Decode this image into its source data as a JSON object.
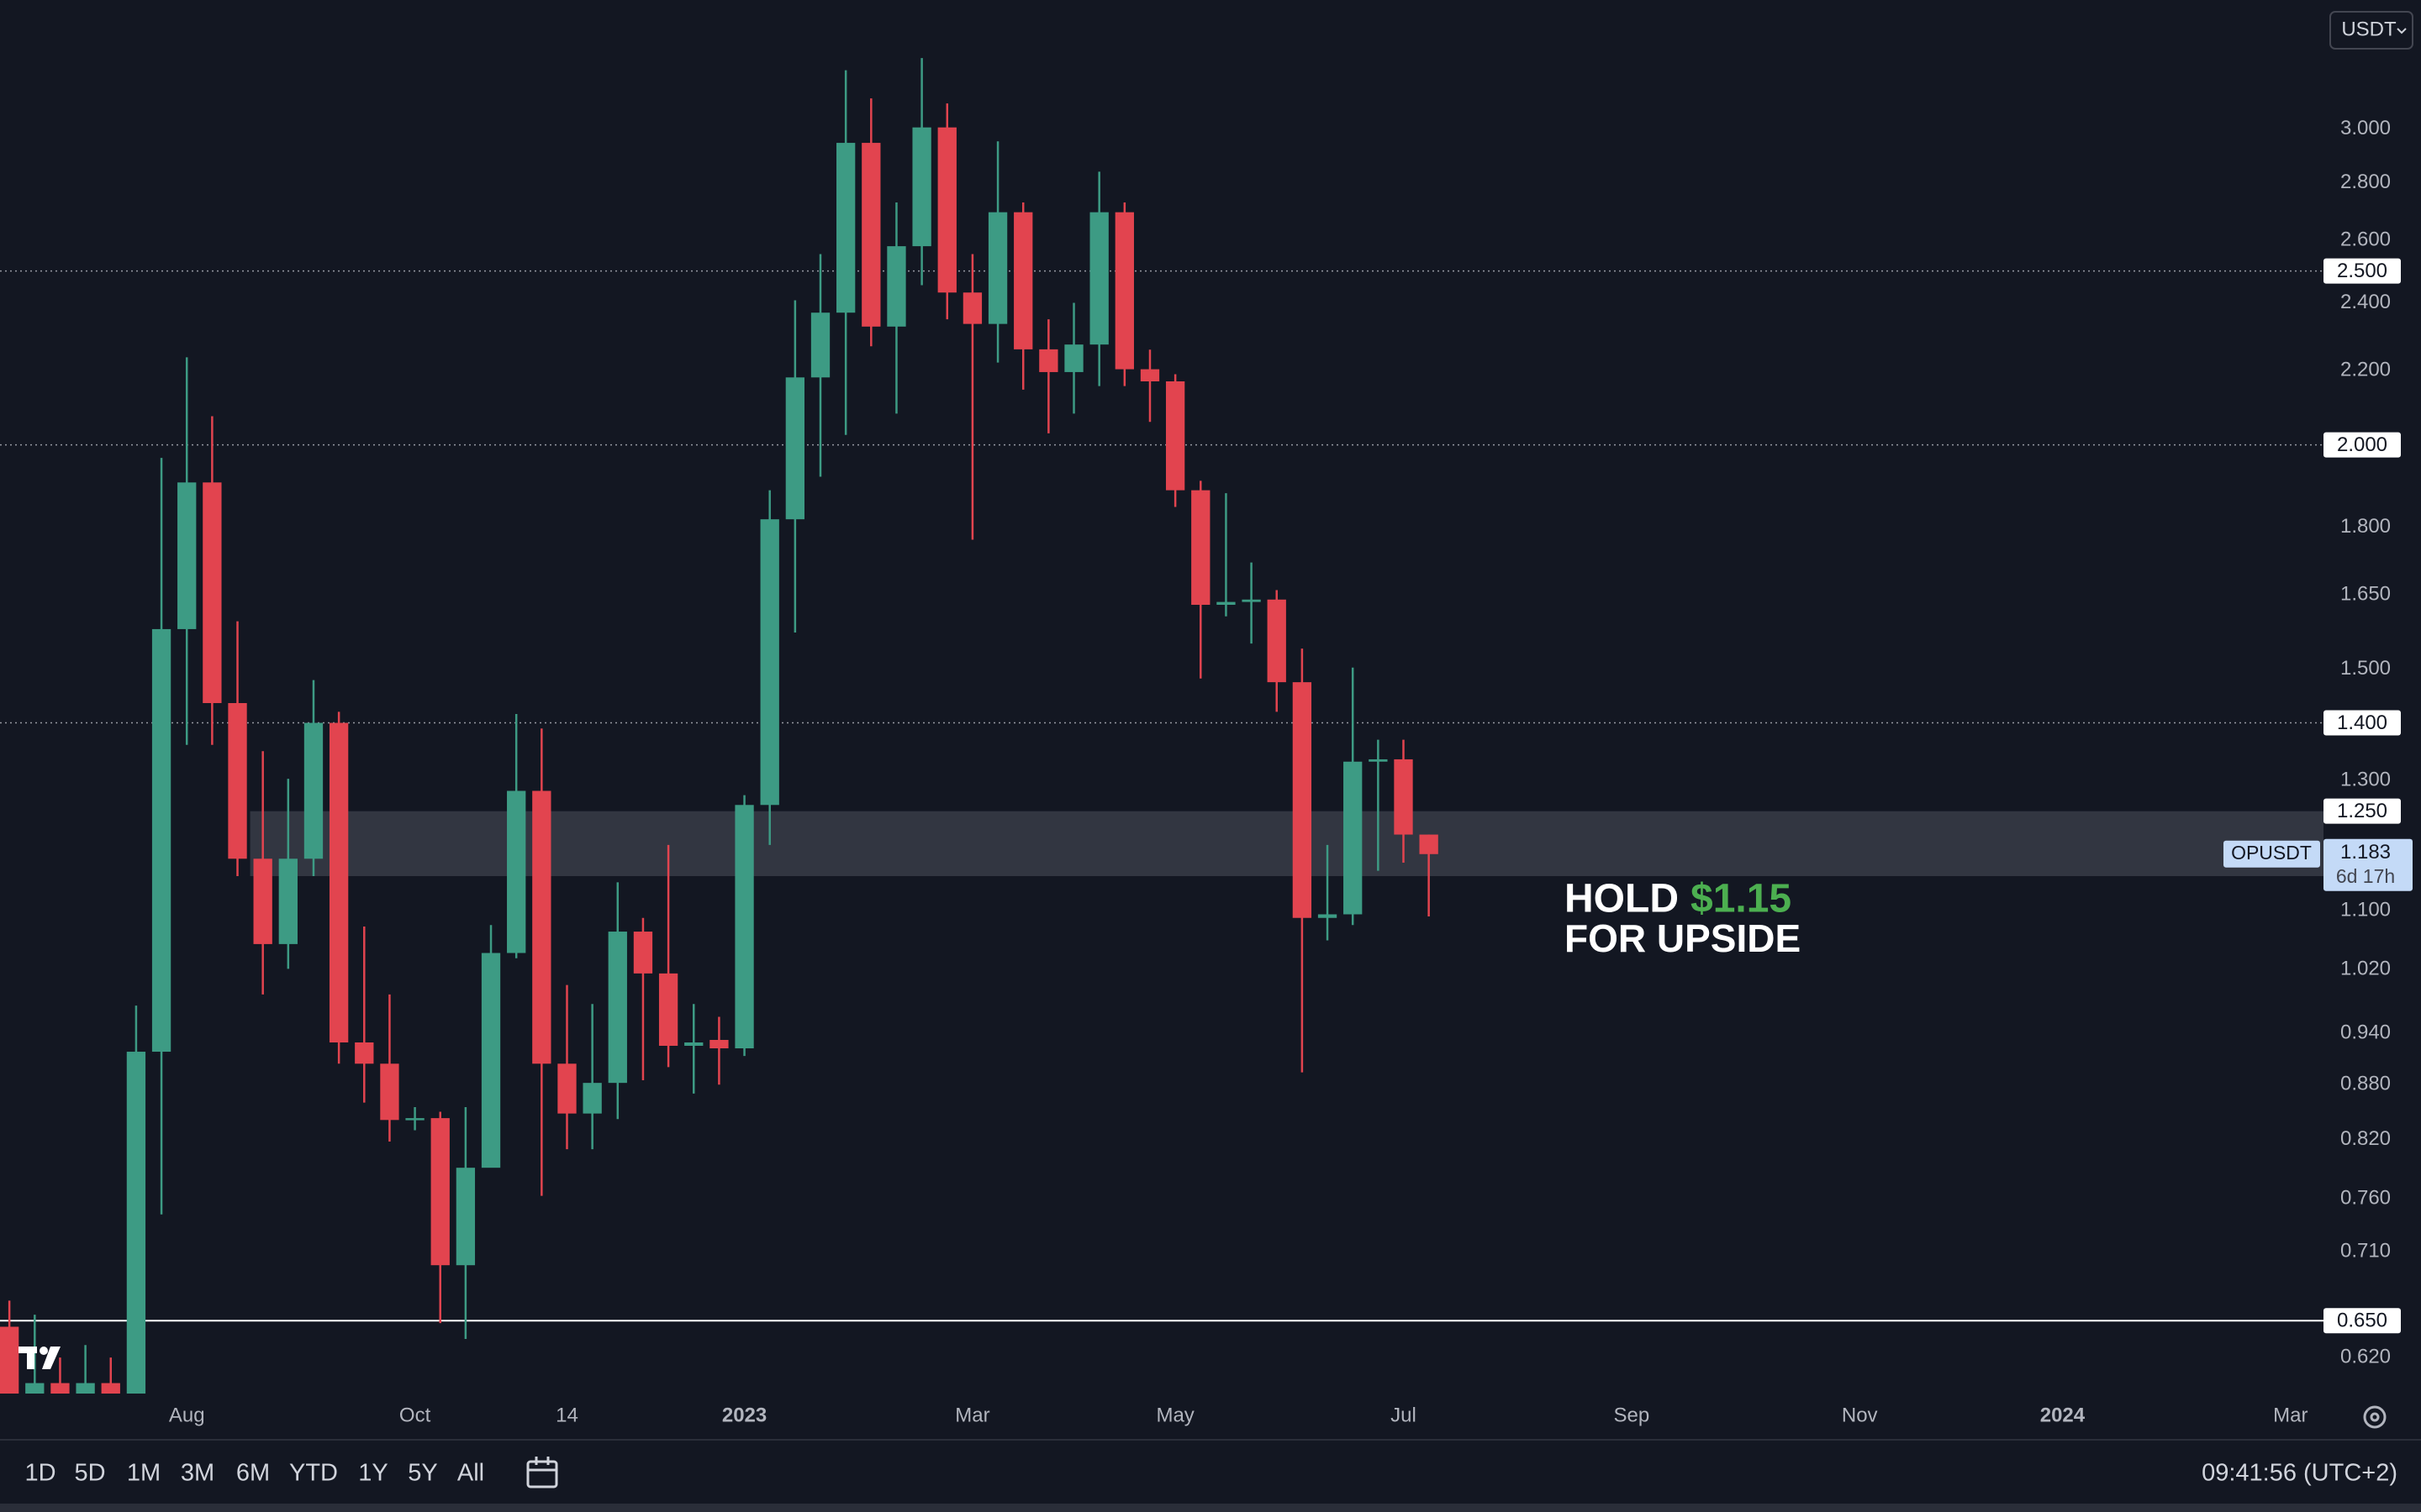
{
  "chart_data": {
    "type": "candlestick",
    "currency": "USDT",
    "symbol": "OPUSDT",
    "countdown": "6d 17h",
    "log_scale": true,
    "grid": false,
    "up_color": "#3d9b84",
    "down_color": "#e2444f",
    "categories": [
      null,
      null,
      null,
      null,
      null,
      null,
      null,
      null,
      null,
      null,
      null,
      null,
      null,
      null,
      null,
      null,
      null,
      null,
      null,
      null,
      null,
      null,
      null,
      null,
      null,
      null,
      null,
      null,
      null,
      null,
      null,
      null,
      null,
      null,
      null,
      null,
      null,
      null,
      null,
      null,
      null,
      null,
      null,
      null,
      null,
      null,
      null,
      null,
      null,
      null,
      null,
      null,
      null,
      null,
      null,
      null,
      null
    ],
    "open": [
      0.645,
      0.59,
      0.6,
      0.58,
      0.6,
      0.58,
      0.918,
      1.579,
      1.906,
      1.436,
      1.176,
      1.054,
      1.176,
      1.4,
      0.929,
      0.904,
      0.841,
      0.843,
      0.698,
      0.791,
      1.042,
      1.283,
      0.904,
      0.848,
      0.882,
      1.071,
      1.015,
      0.925,
      0.932,
      0.922,
      1.26,
      1.818,
      2.181,
      2.37,
      2.947,
      2.328,
      2.581,
      3.006,
      2.432,
      2.336,
      2.696,
      2.261,
      2.196,
      2.275,
      2.696,
      2.204,
      2.17,
      1.887,
      1.629,
      1.635,
      1.64,
      1.475,
      1.09,
      1.095,
      1.332,
      1.336,
      1.213
    ],
    "high": [
      0.667,
      0.655,
      0.62,
      0.63,
      0.62,
      0.974,
      1.967,
      2.238,
      2.075,
      1.595,
      1.35,
      1.303,
      1.479,
      1.42,
      1.078,
      0.988,
      0.855,
      0.85,
      0.855,
      1.08,
      1.416,
      1.39,
      1.0,
      0.976,
      1.141,
      1.09,
      1.197,
      0.976,
      0.96,
      1.276,
      1.887,
      2.408,
      2.555,
      3.235,
      3.12,
      2.73,
      3.286,
      3.1,
      2.555,
      2.953,
      2.73,
      2.35,
      2.4,
      2.84,
      2.73,
      2.26,
      2.19,
      1.91,
      1.88,
      1.72,
      1.66,
      1.54,
      1.197,
      1.503,
      1.37,
      1.37,
      1.213
    ],
    "low": [
      0.57,
      0.56,
      0.56,
      0.56,
      0.57,
      0.56,
      0.745,
      1.361,
      1.361,
      1.15,
      0.988,
      1.021,
      1.15,
      0.904,
      0.86,
      0.818,
      0.83,
      0.648,
      0.635,
      0.8,
      1.035,
      0.763,
      0.81,
      0.81,
      0.842,
      0.885,
      0.9,
      0.87,
      0.88,
      0.913,
      1.197,
      1.572,
      1.92,
      2.026,
      2.27,
      2.082,
      2.455,
      2.35,
      1.771,
      2.223,
      2.147,
      2.03,
      2.082,
      2.157,
      2.157,
      2.06,
      1.847,
      1.482,
      1.605,
      1.55,
      1.42,
      0.894,
      1.059,
      1.08,
      1.158,
      1.17,
      1.092
    ],
    "close": [
      0.58,
      0.6,
      0.58,
      0.6,
      0.59,
      0.918,
      1.579,
      1.906,
      1.436,
      1.176,
      1.054,
      1.176,
      1.4,
      0.929,
      0.904,
      0.841,
      0.843,
      0.698,
      0.791,
      1.042,
      1.283,
      0.904,
      0.848,
      0.882,
      1.071,
      1.015,
      0.925,
      0.929,
      0.922,
      1.26,
      1.818,
      2.181,
      2.37,
      2.947,
      2.328,
      2.581,
      3.006,
      2.432,
      2.336,
      2.696,
      2.261,
      2.196,
      2.275,
      2.696,
      2.204,
      2.17,
      1.887,
      1.629,
      1.635,
      1.64,
      1.475,
      1.09,
      1.095,
      1.332,
      1.336,
      1.213,
      1.183
    ],
    "xlim": [
      -0.37,
      91.3
    ],
    "xticks": [
      {
        "value": 7,
        "label": "Aug"
      },
      {
        "value": 16,
        "label": "Oct"
      },
      {
        "value": 22,
        "label": "14"
      },
      {
        "value": 29,
        "label": "2023"
      },
      {
        "value": 38,
        "label": "Mar"
      },
      {
        "value": 46,
        "label": "May"
      },
      {
        "value": 55,
        "label": "Jul"
      },
      {
        "value": 64,
        "label": "Sep"
      },
      {
        "value": 73,
        "label": "Nov"
      },
      {
        "value": 81,
        "label": "2024"
      },
      {
        "value": 90,
        "label": "Mar"
      }
    ],
    "ylim": [
      0.592,
      3.54
    ],
    "yticks": [
      {
        "value": 3,
        "label": "3.000"
      },
      {
        "value": 2.8,
        "label": "2.800"
      },
      {
        "value": 2.6,
        "label": "2.600"
      },
      {
        "value": 2.4,
        "label": "2.400"
      },
      {
        "value": 2.2,
        "label": "2.200"
      },
      {
        "value": 1.8,
        "label": "1.800"
      },
      {
        "value": 1.65,
        "label": "1.650"
      },
      {
        "value": 1.5,
        "label": "1.500"
      },
      {
        "value": 1.3,
        "label": "1.300"
      },
      {
        "value": 1.1,
        "label": "1.100"
      },
      {
        "value": 1.02,
        "label": "1.020"
      },
      {
        "value": 0.94,
        "label": "0.940"
      },
      {
        "value": 0.88,
        "label": "0.880"
      },
      {
        "value": 0.82,
        "label": "0.820"
      },
      {
        "value": 0.76,
        "label": "0.760"
      },
      {
        "value": 0.71,
        "label": "0.710"
      },
      {
        "value": 0.62,
        "label": "0.620"
      }
    ],
    "levels": [
      {
        "value": 2.5,
        "label": "2.500",
        "style": "dotted"
      },
      {
        "value": 2,
        "label": "2.000",
        "style": "dotted"
      },
      {
        "value": 1.4,
        "label": "1.400",
        "style": "dotted"
      },
      {
        "value": 0.65,
        "label": "0.650",
        "style": "solid"
      }
    ],
    "zone": {
      "low": 1.15,
      "high": {
        "value": 1.25,
        "label": "1.250"
      }
    },
    "last_price": {
      "value": 1.183,
      "label": "1.183"
    },
    "annotation": {
      "line1": "HOLD",
      "price": "$1.15",
      "line2": "FOR UPSIDE"
    }
  },
  "toolbar": {
    "ranges": [
      "1D",
      "5D",
      "1M",
      "3M",
      "6M",
      "YTD",
      "1Y",
      "5Y",
      "All"
    ],
    "clock": "09:41:56 (UTC+2)"
  }
}
